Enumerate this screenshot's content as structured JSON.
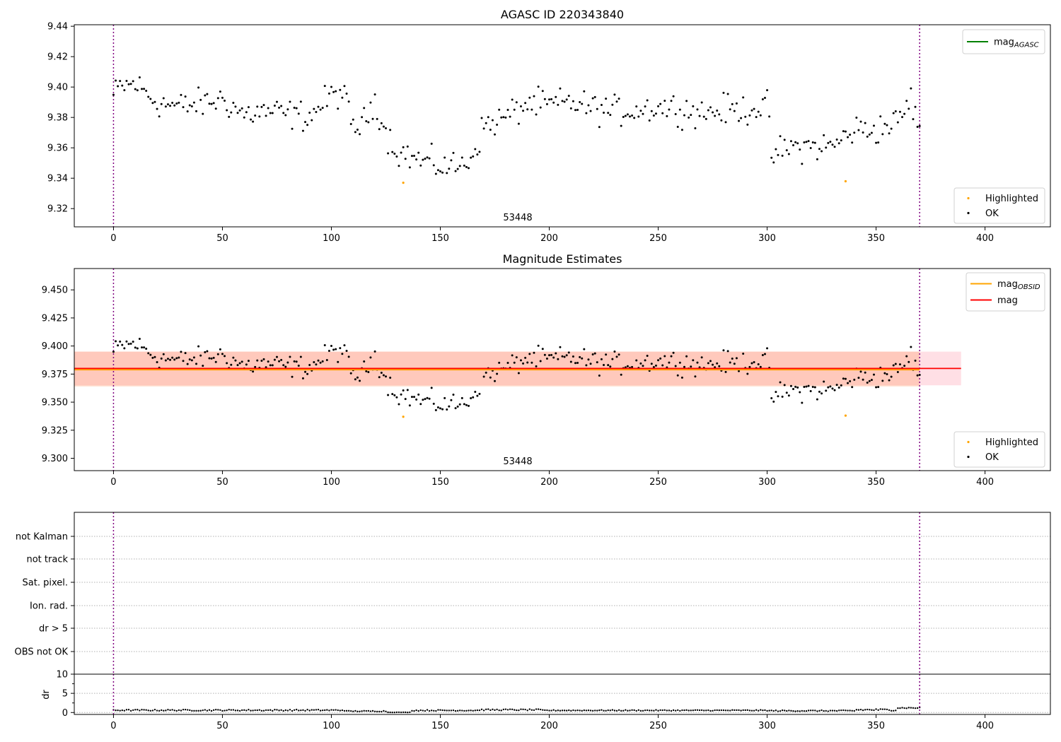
{
  "chart_data": [
    {
      "type": "scatter",
      "title": "AGASC ID 220343840",
      "annotation": "53448",
      "xlim": [
        -18,
        430
      ],
      "ylim": [
        9.308,
        9.441
      ],
      "xticks": [
        0,
        50,
        100,
        150,
        200,
        250,
        300,
        350,
        400
      ],
      "yticks": [
        9.32,
        9.34,
        9.36,
        9.38,
        9.4,
        9.42,
        9.44
      ],
      "ytick_labels": [
        "9.32",
        "9.34",
        "9.36",
        "9.38",
        "9.40",
        "9.42",
        "9.44"
      ],
      "vlines": [
        0,
        370
      ],
      "legend_top": [
        {
          "label": "mag",
          "sub": "AGASC",
          "color": "#008000",
          "kind": "line"
        }
      ],
      "legend_bottom": [
        {
          "label": "Highlighted",
          "color": "#ffa500",
          "kind": "point"
        },
        {
          "label": "OK",
          "color": "#000000",
          "kind": "point"
        }
      ],
      "highlighted": [
        [
          133,
          9.337
        ],
        [
          336,
          9.338
        ]
      ],
      "series_ref": "magnitudes"
    },
    {
      "type": "scatter",
      "title": "Magnitude Estimates",
      "annotation": "53448",
      "xlim": [
        -18,
        430
      ],
      "ylim": [
        9.289,
        9.469
      ],
      "xticks": [
        0,
        50,
        100,
        150,
        200,
        250,
        300,
        350,
        400
      ],
      "yticks": [
        9.3,
        9.325,
        9.35,
        9.375,
        9.4,
        9.425,
        9.45
      ],
      "ytick_labels": [
        "9.300",
        "9.325",
        "9.350",
        "9.375",
        "9.400",
        "9.425",
        "9.450"
      ],
      "vlines": [
        0,
        370
      ],
      "mag_line": {
        "value": 9.38,
        "x": [
          -18,
          389
        ],
        "band": [
          9.365,
          9.395
        ],
        "color": "#ff0000"
      },
      "mag_obsid_line": {
        "value": 9.379,
        "x": [
          -18,
          370
        ],
        "band": [
          9.364,
          9.395
        ],
        "color": "#ffa500"
      },
      "legend_top": [
        {
          "label": "mag",
          "sub": "OBSID",
          "color": "#ffa500",
          "kind": "line"
        },
        {
          "label": "mag",
          "sub": "",
          "color": "#ff0000",
          "kind": "line"
        }
      ],
      "legend_bottom": [
        {
          "label": "Highlighted",
          "color": "#ffa500",
          "kind": "point"
        },
        {
          "label": "OK",
          "color": "#000000",
          "kind": "point"
        }
      ],
      "highlighted": [
        [
          133,
          9.337
        ],
        [
          336,
          9.338
        ]
      ],
      "series_ref": "magnitudes"
    },
    {
      "type": "scatter",
      "title": "",
      "flag_categories": [
        "not Kalman",
        "not track",
        "Sat. pixel.",
        "Ion. rad.",
        "dr > 5",
        "OBS not OK"
      ],
      "dr_ylabel": "dr",
      "dr_ylim": [
        -0.5,
        10
      ],
      "dr_yticks": [
        0,
        5,
        10
      ],
      "dr_ytick_labels": [
        "0",
        "5",
        "10"
      ],
      "xlim": [
        -18,
        430
      ],
      "xticks": [
        0,
        50,
        100,
        150,
        200,
        250,
        300,
        350,
        400
      ],
      "vlines": [
        0,
        370
      ],
      "dr_segments": [
        {
          "x": [
            0,
            106
          ],
          "base": 0.6,
          "amp": 0.35
        },
        {
          "x": [
            107,
            125
          ],
          "base": 0.35,
          "amp": 0.25
        },
        {
          "x": [
            126,
            136
          ],
          "base": 0.05,
          "amp": 0.05
        },
        {
          "x": [
            137,
            167
          ],
          "base": 0.55,
          "amp": 0.3
        },
        {
          "x": [
            168,
            196
          ],
          "base": 0.7,
          "amp": 0.35
        },
        {
          "x": [
            197,
            300
          ],
          "base": 0.55,
          "amp": 0.25
        },
        {
          "x": [
            301,
            340
          ],
          "base": 0.45,
          "amp": 0.3
        },
        {
          "x": [
            341,
            359
          ],
          "base": 0.7,
          "amp": 0.5
        },
        {
          "x": [
            360,
            370
          ],
          "base": 1.2,
          "amp": 0.3
        }
      ]
    }
  ],
  "magnitudes": {
    "x_range": [
      0,
      370
    ],
    "anchors": [
      [
        0,
        9.394
      ],
      [
        3,
        9.4
      ],
      [
        10,
        9.402
      ],
      [
        20,
        9.39
      ],
      [
        30,
        9.387
      ],
      [
        40,
        9.389
      ],
      [
        50,
        9.392
      ],
      [
        60,
        9.382
      ],
      [
        70,
        9.384
      ],
      [
        80,
        9.382
      ],
      [
        90,
        9.381
      ],
      [
        100,
        9.394
      ],
      [
        105,
        9.397
      ],
      [
        110,
        9.373
      ],
      [
        115,
        9.376
      ],
      [
        120,
        9.392
      ],
      [
        125,
        9.37
      ],
      [
        130,
        9.358
      ],
      [
        140,
        9.352
      ],
      [
        150,
        9.348
      ],
      [
        160,
        9.348
      ],
      [
        165,
        9.356
      ],
      [
        170,
        9.374
      ],
      [
        180,
        9.38
      ],
      [
        190,
        9.389
      ],
      [
        200,
        9.388
      ],
      [
        210,
        9.39
      ],
      [
        220,
        9.386
      ],
      [
        230,
        9.384
      ],
      [
        240,
        9.385
      ],
      [
        250,
        9.387
      ],
      [
        260,
        9.386
      ],
      [
        270,
        9.383
      ],
      [
        280,
        9.385
      ],
      [
        290,
        9.385
      ],
      [
        300,
        9.388
      ],
      [
        302,
        9.355
      ],
      [
        310,
        9.36
      ],
      [
        320,
        9.361
      ],
      [
        330,
        9.361
      ],
      [
        340,
        9.372
      ],
      [
        350,
        9.372
      ],
      [
        360,
        9.377
      ],
      [
        366,
        9.392
      ],
      [
        370,
        9.371
      ]
    ],
    "spread": 0.0075
  }
}
